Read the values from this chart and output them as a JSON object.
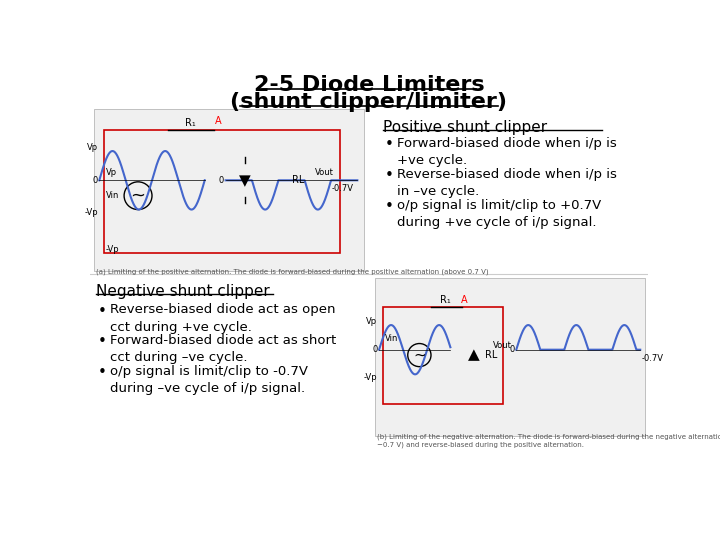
{
  "title_line1": "2-5 Diode Limiters",
  "title_line2": "(shunt clipper/limiter)",
  "bg_color": "#ffffff",
  "title_fontsize": 16,
  "title_color": "#000000",
  "pos_clipper_title": "Positive shunt clipper",
  "pos_bullet1": "Forward-biased diode when i/p is\n+ve cycle.",
  "pos_bullet2": "Reverse-biased diode when i/p is\nin –ve cycle.",
  "pos_bullet3": "o/p signal is limit/clip to +0.7V\nduring +ve cycle of i/p signal.",
  "neg_clipper_title": "Negative shunt clipper",
  "neg_bullet1": "Reverse-biased diode act as open\ncct during +ve cycle.",
  "neg_bullet2": "Forward-biased diode act as short\ncct during –ve cycle.",
  "neg_bullet3": "o/p signal is limit/clip to -0.7V\nduring –ve cycle of i/p signal.",
  "text_fontsize": 10,
  "bullet_fontsize": 10,
  "divider_color": "#cccccc"
}
